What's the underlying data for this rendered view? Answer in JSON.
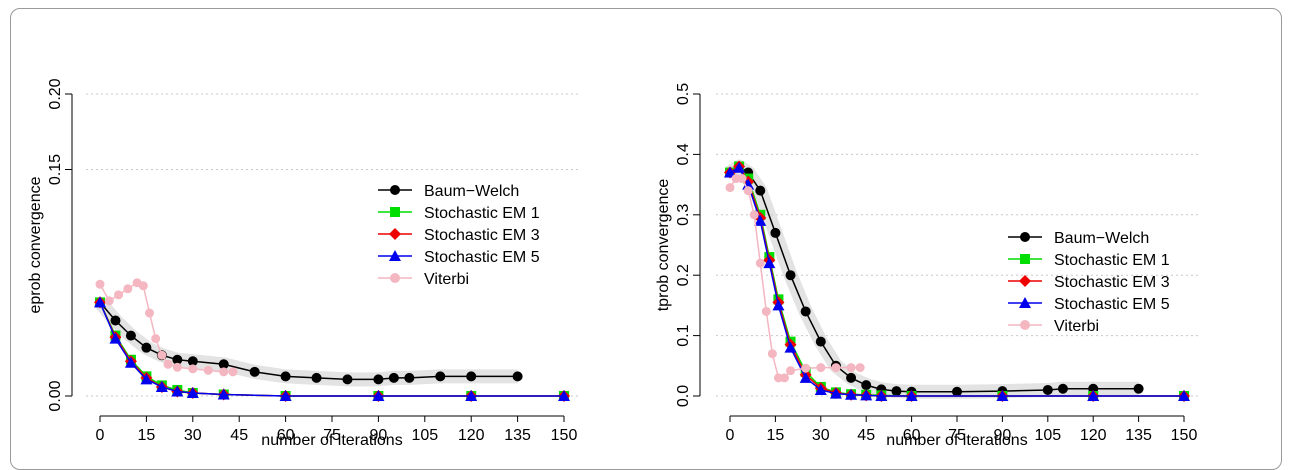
{
  "chart_data": [
    {
      "type": "scatter",
      "ylabel": "eprob convergence",
      "xlabel": "number of iterations",
      "xlim": [
        0,
        150
      ],
      "ylim": [
        0,
        0.2
      ],
      "x_ticks": [
        0,
        15,
        30,
        45,
        60,
        75,
        90,
        105,
        120,
        135,
        150
      ],
      "y_ticks": [
        0.0,
        0.15,
        0.2
      ],
      "y_tick_labels": [
        "0.00",
        "0.15",
        "0.20"
      ],
      "grid": "horizontal dotted",
      "legend_placement": "right",
      "series": [
        {
          "name": "Baum−Welch",
          "color": "#000000",
          "marker": "circle",
          "x": [
            0,
            5,
            10,
            15,
            20,
            25,
            30,
            40,
            50,
            60,
            70,
            80,
            90,
            95,
            100,
            110,
            120,
            135
          ],
          "y": [
            0.062,
            0.05,
            0.04,
            0.032,
            0.027,
            0.024,
            0.023,
            0.021,
            0.016,
            0.013,
            0.012,
            0.011,
            0.011,
            0.012,
            0.012,
            0.013,
            0.013,
            0.013
          ]
        },
        {
          "name": "Stochastic EM 1",
          "color": "#00dd00",
          "marker": "square",
          "x": [
            0,
            5,
            10,
            15,
            20,
            25,
            30,
            40,
            60,
            90,
            120,
            150
          ],
          "y": [
            0.062,
            0.04,
            0.024,
            0.013,
            0.007,
            0.004,
            0.002,
            0.001,
            0.0,
            0.0,
            0.0,
            0.0
          ]
        },
        {
          "name": "Stochastic EM 3",
          "color": "#ee0000",
          "marker": "diamond",
          "x": [
            0,
            5,
            10,
            15,
            20,
            25,
            30,
            40,
            60,
            90,
            120,
            150
          ],
          "y": [
            0.062,
            0.039,
            0.023,
            0.012,
            0.006,
            0.003,
            0.002,
            0.001,
            0.0,
            0.0,
            0.0,
            0.0
          ]
        },
        {
          "name": "Stochastic EM 5",
          "color": "#0000ee",
          "marker": "triangle",
          "x": [
            0,
            5,
            10,
            15,
            20,
            25,
            30,
            40,
            60,
            90,
            120,
            150
          ],
          "y": [
            0.062,
            0.038,
            0.022,
            0.011,
            0.006,
            0.003,
            0.002,
            0.001,
            0.0,
            0.0,
            0.0,
            0.0
          ]
        },
        {
          "name": "Viterbi",
          "color": "#f4b6c0",
          "marker": "circle",
          "x": [
            0,
            3,
            6,
            9,
            12,
            14,
            16,
            18,
            20,
            22,
            25,
            30,
            35,
            40,
            43
          ],
          "y": [
            0.074,
            0.063,
            0.067,
            0.071,
            0.075,
            0.073,
            0.055,
            0.038,
            0.027,
            0.021,
            0.019,
            0.018,
            0.017,
            0.016,
            0.016
          ]
        }
      ]
    },
    {
      "type": "scatter",
      "ylabel": "tprob convergence",
      "xlabel": "number of iterations",
      "xlim": [
        0,
        150
      ],
      "ylim": [
        0,
        0.5
      ],
      "x_ticks": [
        0,
        15,
        30,
        45,
        60,
        75,
        90,
        105,
        120,
        135,
        150
      ],
      "y_ticks": [
        0.0,
        0.1,
        0.2,
        0.3,
        0.4,
        0.5
      ],
      "y_tick_labels": [
        "0.0",
        "0.1",
        "0.2",
        "0.3",
        "0.4",
        "0.5"
      ],
      "grid": "horizontal dotted",
      "legend_placement": "right",
      "series": [
        {
          "name": "Baum−Welch",
          "color": "#000000",
          "marker": "circle",
          "x": [
            0,
            3,
            6,
            10,
            15,
            20,
            25,
            30,
            35,
            40,
            45,
            50,
            55,
            60,
            75,
            90,
            105,
            110,
            120,
            135
          ],
          "y": [
            0.37,
            0.38,
            0.37,
            0.34,
            0.27,
            0.2,
            0.14,
            0.09,
            0.05,
            0.03,
            0.018,
            0.011,
            0.008,
            0.007,
            0.007,
            0.008,
            0.01,
            0.012,
            0.012,
            0.012
          ]
        },
        {
          "name": "Stochastic EM 1",
          "color": "#00dd00",
          "marker": "square",
          "x": [
            0,
            3,
            6,
            10,
            13,
            16,
            20,
            25,
            30,
            35,
            40,
            45,
            50,
            60,
            90,
            120,
            150
          ],
          "y": [
            0.37,
            0.38,
            0.36,
            0.3,
            0.23,
            0.16,
            0.09,
            0.04,
            0.015,
            0.006,
            0.003,
            0.002,
            0.001,
            0.0,
            0.0,
            0.0,
            0.0
          ]
        },
        {
          "name": "Stochastic EM 3",
          "color": "#ee0000",
          "marker": "diamond",
          "x": [
            0,
            3,
            6,
            10,
            13,
            16,
            20,
            25,
            30,
            35,
            40,
            45,
            50,
            60,
            90,
            120,
            150
          ],
          "y": [
            0.37,
            0.38,
            0.355,
            0.295,
            0.225,
            0.155,
            0.085,
            0.035,
            0.013,
            0.005,
            0.002,
            0.001,
            0.0,
            0.0,
            0.0,
            0.0,
            0.0
          ]
        },
        {
          "name": "Stochastic EM 5",
          "color": "#0000ee",
          "marker": "triangle",
          "x": [
            0,
            3,
            6,
            10,
            13,
            16,
            20,
            25,
            30,
            35,
            40,
            45,
            50,
            60,
            90,
            120,
            150
          ],
          "y": [
            0.37,
            0.378,
            0.35,
            0.29,
            0.22,
            0.15,
            0.08,
            0.03,
            0.01,
            0.004,
            0.002,
            0.001,
            0.0,
            0.0,
            0.0,
            0.0,
            0.0
          ]
        },
        {
          "name": "Viterbi",
          "color": "#f4b6c0",
          "marker": "circle",
          "x": [
            0,
            2,
            4,
            6,
            8,
            10,
            12,
            14,
            16,
            18,
            20,
            25,
            30,
            35,
            40,
            43
          ],
          "y": [
            0.345,
            0.36,
            0.36,
            0.34,
            0.3,
            0.22,
            0.14,
            0.07,
            0.03,
            0.03,
            0.042,
            0.046,
            0.047,
            0.047,
            0.047,
            0.047
          ]
        }
      ]
    }
  ]
}
